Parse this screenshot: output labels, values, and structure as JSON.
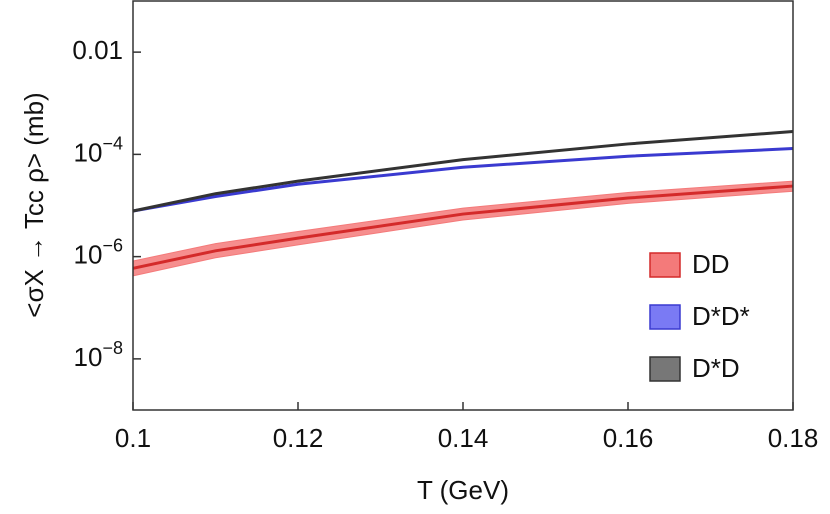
{
  "chart_data": {
    "type": "line",
    "xlabel": "T (GeV)",
    "ylabel": "<σX → Tcc ρ> (mb)",
    "x": [
      0.1,
      0.11,
      0.12,
      0.14,
      0.16,
      0.18
    ],
    "series": [
      {
        "name": "DD",
        "color": "#d42a2a",
        "band_color": "#f47a7a",
        "values": [
          5.9e-07,
          1.3e-06,
          2.3e-06,
          6.8e-06,
          1.4e-05,
          2.4e-05
        ],
        "lower": [
          4.2e-07,
          9.5e-07,
          1.7e-06,
          5.2e-06,
          1.1e-05,
          1.9e-05
        ],
        "upper": [
          8.2e-07,
          1.8e-06,
          3.1e-06,
          8.9e-06,
          1.8e-05,
          3e-05
        ]
      },
      {
        "name": "D*D*",
        "color": "#3a3ad0",
        "band_color": "#7a7af4",
        "values": [
          7.8e-06,
          1.5e-05,
          2.6e-05,
          5.6e-05,
          9.2e-05,
          0.00013
        ]
      },
      {
        "name": "D*D",
        "color": "#333333",
        "band_color": "#777777",
        "values": [
          7.8e-06,
          1.7e-05,
          3e-05,
          7.9e-05,
          0.00016,
          0.00028
        ]
      }
    ],
    "xlim": [
      0.1,
      0.18
    ],
    "xticks": [
      0.1,
      0.12,
      0.14,
      0.16,
      0.18
    ],
    "ylim": [
      1e-09,
      0.1
    ],
    "ylog": true,
    "yticks": [
      0.01,
      {
        "value": 0.0001,
        "label": "10−4"
      },
      {
        "value": 1e-06,
        "label": "10−6"
      },
      {
        "value": 1e-08,
        "label": "10−8"
      }
    ],
    "legend": "lower right"
  }
}
